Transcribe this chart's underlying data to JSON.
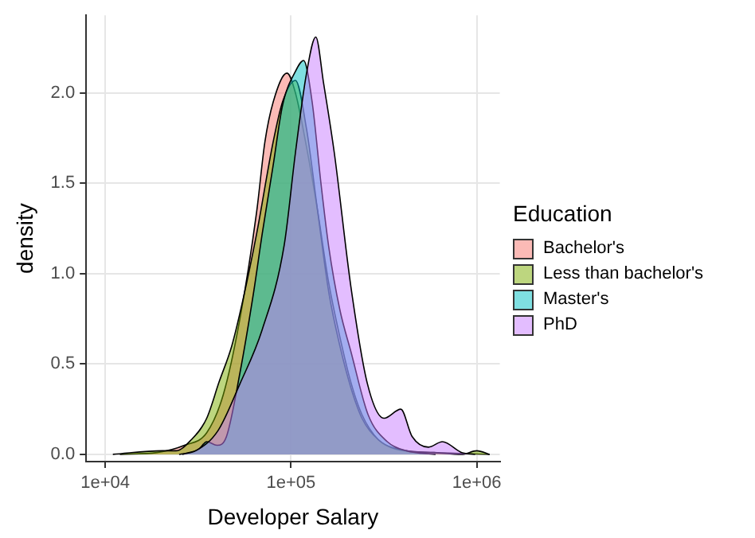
{
  "chart_data": {
    "type": "area",
    "xlabel": "Developer Salary",
    "ylabel": "density",
    "legend_title": "Education",
    "legend": "right",
    "grid": true,
    "log": "x",
    "xlim": [
      7900,
      1330000
    ],
    "xticks": [
      {
        "value": 10000,
        "label": "1e+04"
      },
      {
        "value": 100000,
        "label": "1e+05"
      },
      {
        "value": 1000000,
        "label": "1e+06"
      }
    ],
    "ylim": [
      -0.04,
      2.43
    ],
    "yticks": [
      {
        "value": 0,
        "label": "0.0"
      },
      {
        "value": 0.5,
        "label": "0.5"
      },
      {
        "value": 1,
        "label": "1.0"
      },
      {
        "value": 1.5,
        "label": "1.5"
      },
      {
        "value": 2,
        "label": "2.0"
      }
    ],
    "series": [
      {
        "name": "Bachelor's",
        "color": "#f8766d",
        "x": [
          12000,
          19000,
          26700,
          35200,
          43200,
          53100,
          65300,
          72400,
          80200,
          95200,
          105700,
          121300,
          139000,
          159600,
          183300,
          210000,
          241000,
          296000,
          364000,
          589000,
          1172000
        ],
        "values": [
          0,
          0.01,
          0.05,
          0.12,
          0.33,
          0.75,
          1.34,
          1.73,
          1.95,
          2.11,
          2.0,
          1.7,
          1.35,
          0.95,
          0.65,
          0.4,
          0.22,
          0.08,
          0.03,
          0.01,
          0
        ]
      },
      {
        "name": "Less than bachelor's",
        "color": "#7cae00",
        "x": [
          11000,
          20300,
          24000,
          29000,
          35200,
          41000,
          48000,
          55000,
          65300,
          80200,
          90000,
          105700,
          121300,
          139000,
          159600,
          183300,
          210000,
          241000,
          296000,
          418000,
          589000,
          830000,
          1000000,
          1172000
        ],
        "values": [
          0,
          0.02,
          0.02,
          0.08,
          0.2,
          0.4,
          0.6,
          0.85,
          1.22,
          1.73,
          1.95,
          2.07,
          1.8,
          1.35,
          0.9,
          0.6,
          0.37,
          0.2,
          0.08,
          0.02,
          0.01,
          0,
          0.02,
          0
        ]
      },
      {
        "name": "Master's",
        "color": "#00bfc4",
        "x": [
          26000,
          32000,
          35200,
          40000,
          45000,
          53100,
          63000,
          70000,
          80200,
          90000,
          105700,
          117000,
          130000,
          145000,
          159600,
          183300,
          210000,
          260000,
          330000,
          418000,
          600000
        ],
        "values": [
          0,
          0.03,
          0.07,
          0.05,
          0.1,
          0.45,
          0.9,
          1.22,
          1.6,
          1.93,
          2.12,
          2.18,
          1.95,
          1.5,
          1.15,
          0.8,
          0.57,
          0.22,
          0.07,
          0.02,
          0
        ]
      },
      {
        "name": "PhD",
        "color": "#c77cff",
        "x": [
          25000,
          30700,
          40400,
          53100,
          70000,
          92000,
          105700,
          121300,
          136000,
          150000,
          171000,
          210000,
          258000,
          317000,
          390000,
          448000,
          550000,
          653000,
          830000,
          980000
        ],
        "values": [
          0,
          0.02,
          0.13,
          0.39,
          0.69,
          1.16,
          1.67,
          2.11,
          2.31,
          2.05,
          1.67,
          0.93,
          0.39,
          0.2,
          0.25,
          0.1,
          0.04,
          0.07,
          0.01,
          0
        ]
      }
    ]
  }
}
